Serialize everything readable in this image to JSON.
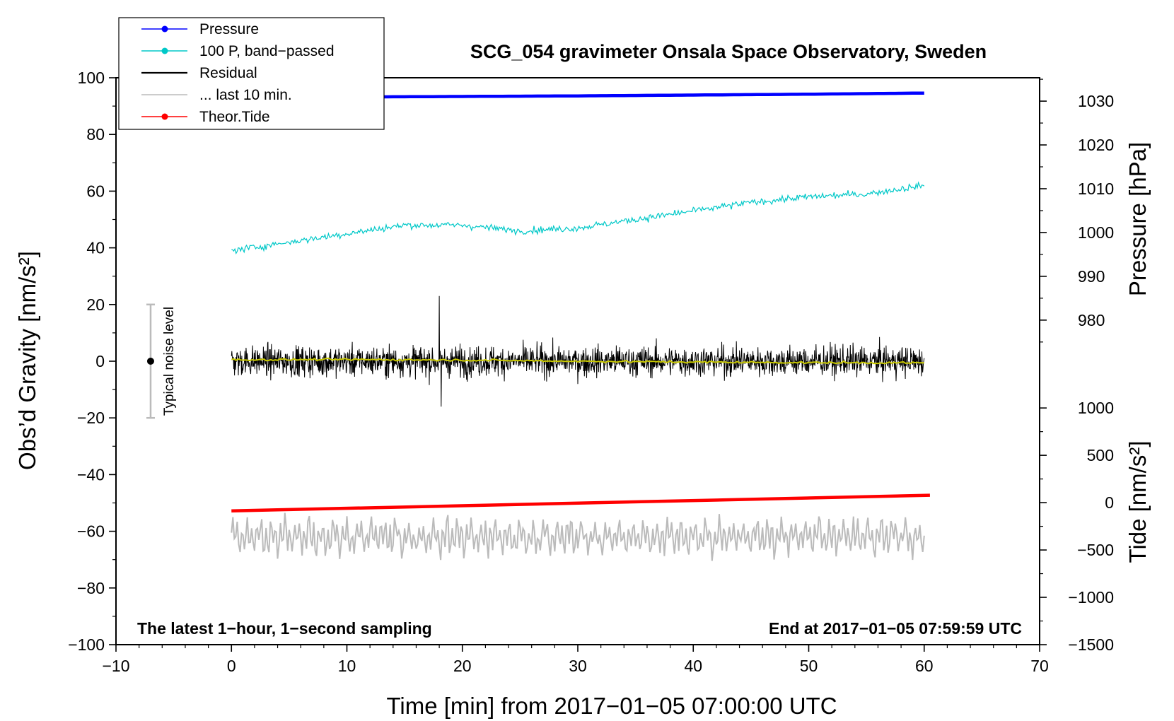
{
  "chart_data": {
    "type": "line",
    "title": "SCG_054 gravimeter Onsala Space Observatory, Sweden",
    "xlabel": "Time [min] from 2017−01−05 07:00:00 UTC",
    "ylabel_left": "Obs’d Gravity [nm/s²]",
    "ylabel_right_top": "Pressure [hPa]",
    "ylabel_right_bottom": "Tide [nm/s²]",
    "xlim": [
      -10,
      70
    ],
    "ylim": [
      -100,
      100
    ],
    "xticks": [
      -10,
      0,
      10,
      20,
      30,
      40,
      50,
      60,
      70
    ],
    "xtick_labels": [
      "−10",
      "0",
      "10",
      "20",
      "30",
      "40",
      "50",
      "60",
      "70"
    ],
    "yticks": [
      -100,
      -80,
      -60,
      -40,
      -20,
      0,
      20,
      40,
      60,
      80,
      100
    ],
    "ytick_labels": [
      "−100",
      "−80",
      "−60",
      "−40",
      "−20",
      "0",
      "20",
      "40",
      "60",
      "80",
      "100"
    ],
    "pressure_axis": {
      "ticks": [
        980,
        990,
        1000,
        1010,
        1020,
        1030
      ],
      "tick_labels": [
        "980",
        "990",
        "1000",
        "1010",
        "1020",
        "1030"
      ],
      "left_value_at_tick_980": 14.5,
      "left_units_per_10hPa": 15.45
    },
    "tide_axis": {
      "ticks": [
        -1500,
        -1000,
        -500,
        0,
        500,
        1000
      ],
      "tick_labels": [
        "−1500",
        "−1000",
        "−500",
        "0",
        "500",
        "1000"
      ],
      "left_value_at_tick_minus1500": -100,
      "left_units_per_500": 16.7
    },
    "legend": {
      "position": "top-left",
      "entries": [
        {
          "label": "Pressure",
          "color": "#0000ff",
          "marker": true
        },
        {
          "label": "100 P, band−passed",
          "color": "#00c8c8",
          "marker": true
        },
        {
          "label": "Residual",
          "color": "#000000",
          "marker": false
        },
        {
          "label": "... last 10 min.",
          "color": "#bbbbbb",
          "marker": false
        },
        {
          "label": "Theor.Tide",
          "color": "#ff0000",
          "marker": true
        }
      ]
    },
    "series": [
      {
        "name": "Pressure",
        "color": "#0000ff",
        "x": [
          0,
          10,
          20,
          30,
          40,
          50,
          60
        ],
        "values": [
          93.0,
          93.2,
          93.4,
          93.6,
          93.9,
          94.2,
          94.6
        ]
      },
      {
        "name": "100 P, band−passed",
        "color": "#00c8c8",
        "x": [
          0,
          5,
          10,
          15,
          20,
          25,
          30,
          35,
          40,
          45,
          50,
          55,
          60
        ],
        "values": [
          39,
          42,
          45,
          48,
          48,
          46,
          47,
          50,
          53,
          56,
          58,
          59,
          62
        ],
        "noise_amplitude": 1.5
      },
      {
        "name": "Residual",
        "color": "#000000",
        "x": [
          0,
          60
        ],
        "values": [
          0,
          0
        ],
        "noise_amplitude": 6,
        "max": 23,
        "min": -16
      },
      {
        "name": "Residual (smoothed)",
        "color": "#c8c800",
        "x": [
          0,
          10,
          20,
          30,
          40,
          50,
          60
        ],
        "values": [
          0.5,
          0.6,
          0.4,
          0.0,
          -0.3,
          -0.5,
          -0.6
        ]
      },
      {
        "name": "... last 10 min.",
        "color": "#bbbbbb",
        "x": [
          0,
          60
        ],
        "values": [
          -62,
          -62
        ],
        "range": [
          -73,
          -52
        ]
      },
      {
        "name": "Theor.Tide",
        "color": "#ff0000",
        "x": [
          0,
          60.5
        ],
        "values": [
          -52.8,
          -47.3
        ]
      }
    ],
    "noise_bar": {
      "label": "Typical noise level",
      "x": -7,
      "center": 0,
      "low": -20,
      "high": 20
    },
    "annotations": {
      "bottom_left": "The latest 1−hour, 1−second sampling",
      "bottom_right": "End at 2017−01−05 07:59:59 UTC"
    }
  }
}
